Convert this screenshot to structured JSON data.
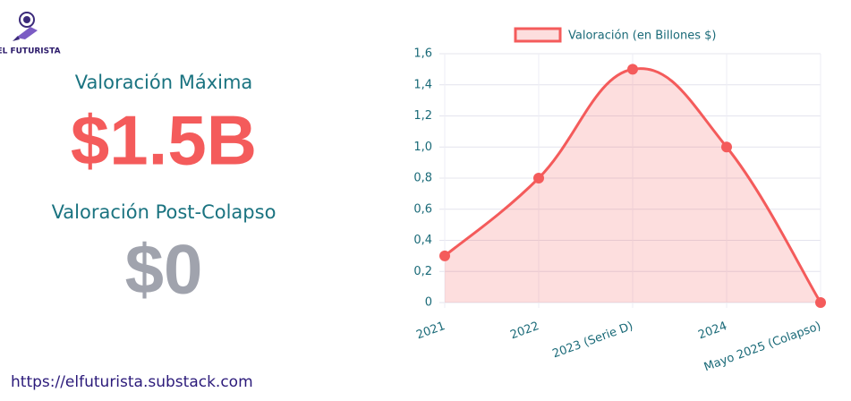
{
  "logo": "EL FUTURISTA",
  "stats": [
    {
      "label": "Valoración Máxima",
      "value": "$1.5B"
    },
    {
      "label": "Valoración Post-Colapso",
      "value": "$0"
    }
  ],
  "footer": "https://elfuturista.substack.com",
  "chart_data": {
    "type": "line",
    "categories": [
      "2021",
      "2022",
      "2023 (Serie D)",
      "2024",
      "Mayo 2025 (Colapso)"
    ],
    "series": [
      {
        "name": "Valoración (en Billones $)",
        "color": "#f45b5b",
        "fill": "rgba(244,91,91,0.2)",
        "values": [
          0.3,
          0.8,
          1.5,
          1.0,
          0
        ]
      }
    ],
    "ylim": [
      0,
      1.6
    ],
    "yticks": [
      0,
      {
        "value": 0.2,
        "label": "0,2"
      },
      {
        "value": 0.4,
        "label": "0,4"
      },
      {
        "value": 0.6,
        "label": "0,6"
      },
      {
        "value": 0.8,
        "label": "0,8"
      },
      {
        "value": 1.0,
        "label": "1,0"
      },
      {
        "value": 1.2,
        "label": "1,2"
      },
      {
        "value": 1.4,
        "label": "1,4"
      },
      {
        "value": 1.6,
        "label": "1,6"
      }
    ],
    "grid": true,
    "legend": "top"
  }
}
